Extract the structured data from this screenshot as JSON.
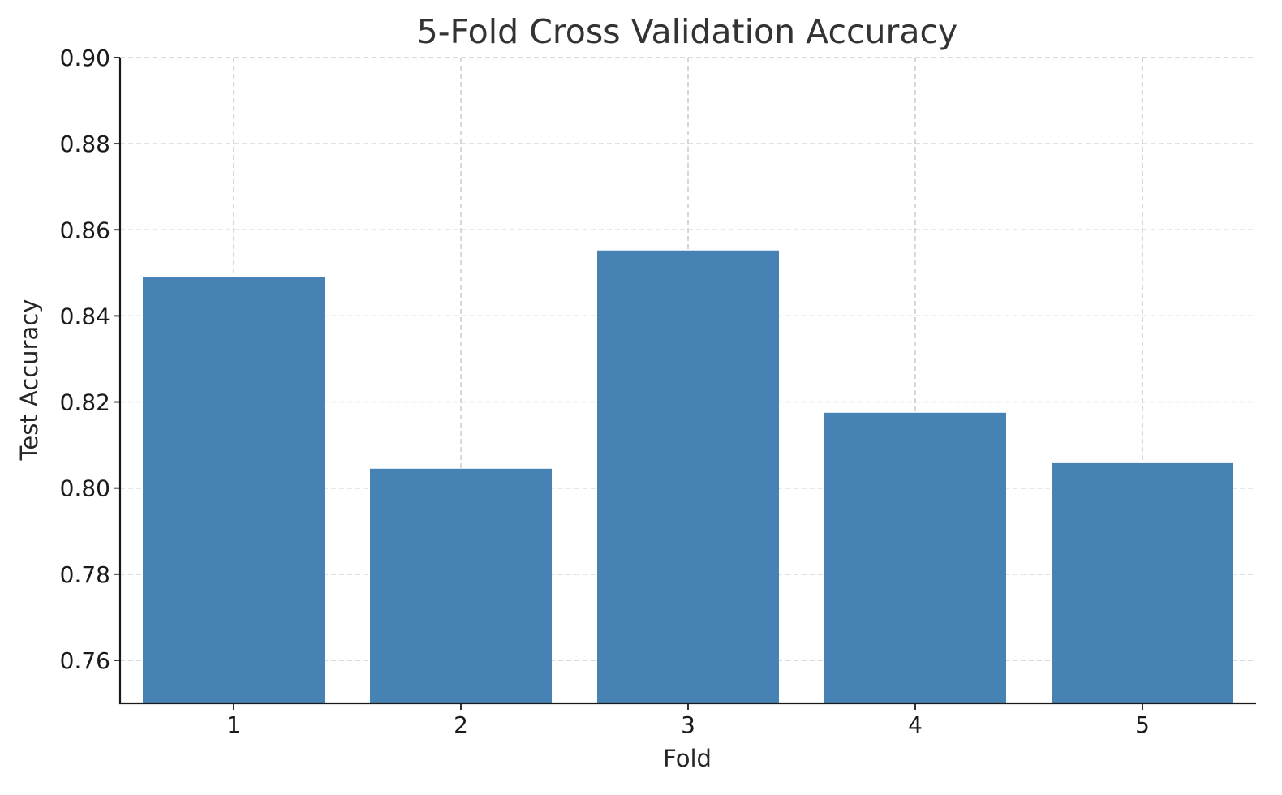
{
  "chart_data": {
    "type": "bar",
    "title": "5-Fold Cross Validation Accuracy",
    "xlabel": "Fold",
    "ylabel": "Test Accuracy",
    "categories": [
      "1",
      "2",
      "3",
      "4",
      "5"
    ],
    "values": [
      0.849,
      0.8045,
      0.8552,
      0.8175,
      0.8058
    ],
    "ylim": [
      0.75,
      0.9
    ],
    "yticks": [
      0.76,
      0.78,
      0.8,
      0.82,
      0.84,
      0.86,
      0.88,
      0.9
    ],
    "ytick_labels": [
      "0.76",
      "0.78",
      "0.80",
      "0.82",
      "0.84",
      "0.86",
      "0.88",
      "0.90"
    ],
    "grid": true,
    "bar_color": "#4682b4"
  }
}
